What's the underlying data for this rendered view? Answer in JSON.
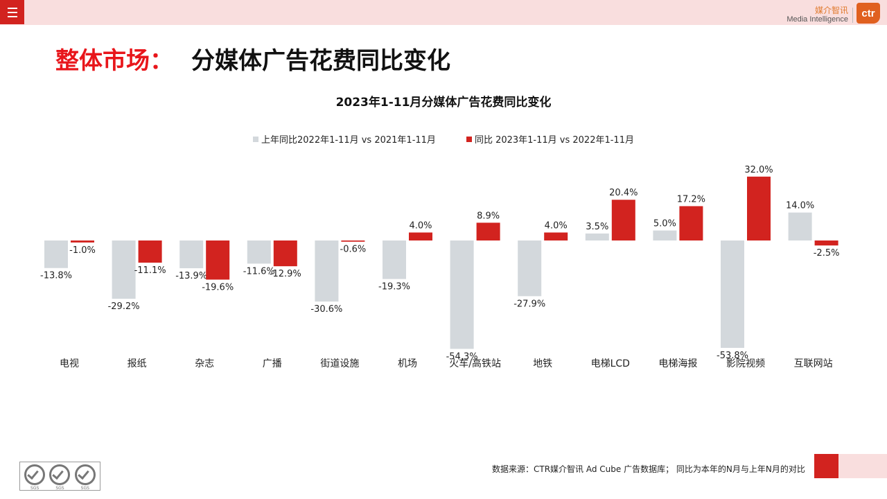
{
  "header": {
    "brand_cn": "媒介智讯",
    "brand_en": "Media Intelligence",
    "brand_logo": "ctr"
  },
  "page": {
    "title_prefix": "整体市场：",
    "title_main": "分媒体广告花费同比变化"
  },
  "colors": {
    "series_prev": "#d3d8dc",
    "series_curr": "#d2231f",
    "title_red": "#e8161b",
    "topbar_pink": "#f9dede"
  },
  "chart_data": {
    "type": "bar",
    "title": "2023年1-11月分媒体广告花费同比变化",
    "legend_position": "top-center",
    "grid": false,
    "categories": [
      "电视",
      "报纸",
      "杂志",
      "广播",
      "街道设施",
      "机场",
      "火车/高铁站",
      "地铁",
      "电梯LCD",
      "电梯海报",
      "影院视频",
      "互联网站"
    ],
    "unit": "%",
    "ylim": [
      -60,
      35
    ],
    "series": [
      {
        "name": "上年同比2022年1-11月 vs 2021年1-11月",
        "color": "#d3d8dc",
        "values": [
          -13.8,
          -29.2,
          -13.9,
          -11.6,
          -30.6,
          -19.3,
          -54.3,
          -27.9,
          3.5,
          5.0,
          -53.8,
          14.0
        ],
        "labels": [
          "-13.8%",
          "-29.2%",
          "-13.9%",
          "-11.6%",
          "-30.6%",
          "-19.3%",
          "-54.3%",
          "-27.9%",
          "3.5%",
          "5.0%",
          "-53.8%",
          "14.0%"
        ]
      },
      {
        "name": "同比 2023年1-11月 vs 2022年1-11月",
        "color": "#d2231f",
        "values": [
          -1.0,
          -11.1,
          -19.6,
          -12.9,
          -0.6,
          4.0,
          8.9,
          4.0,
          20.4,
          17.2,
          32.0,
          -2.5
        ],
        "labels": [
          "-1.0%",
          "-11.1%",
          "-19.6%",
          "-12.9%",
          "-0.6%",
          "4.0%",
          "8.9%",
          "4.0%",
          "20.4%",
          "17.2%",
          "32.0%",
          "-2.5%"
        ]
      }
    ]
  },
  "footer": {
    "source": "数据来源：CTR媒介智讯 Ad Cube 广告数据库；  同比为本年的N月与上年N月的对比",
    "badge_text": "SGS"
  }
}
